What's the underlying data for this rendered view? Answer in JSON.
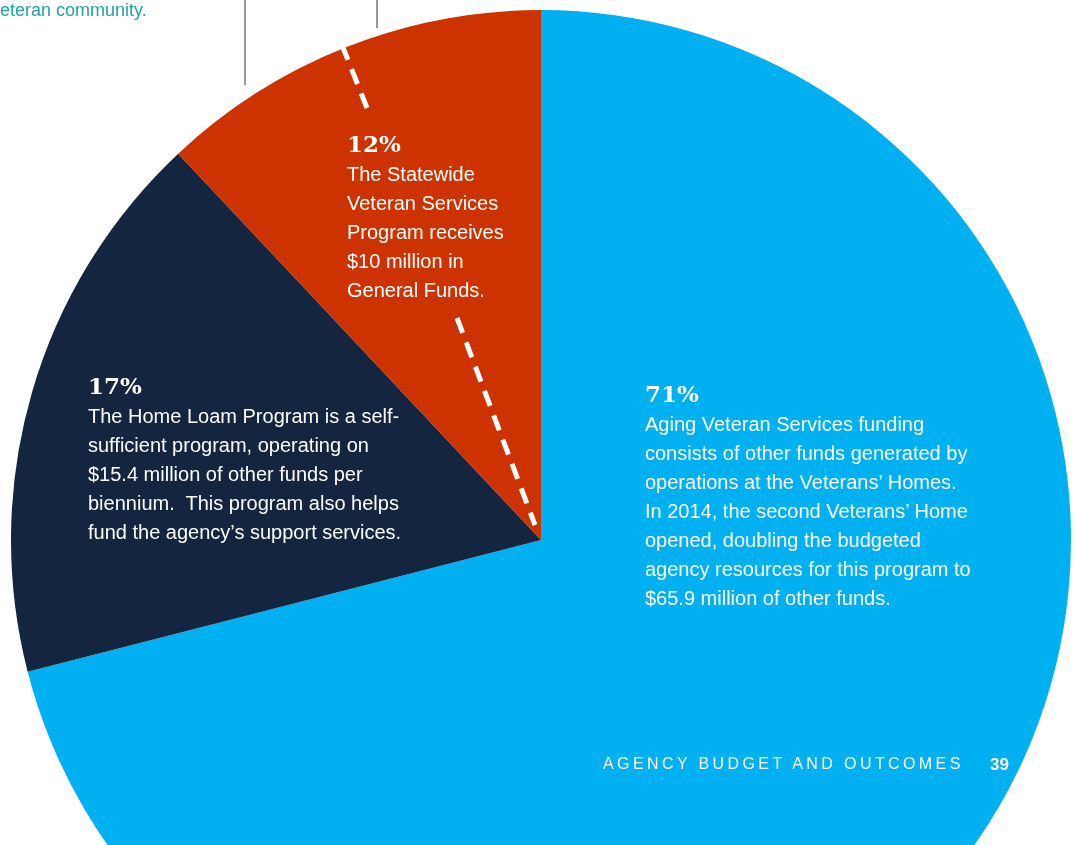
{
  "chart_data": {
    "type": "pie",
    "categories": [
      null,
      null,
      null
    ],
    "values": [
      71,
      17,
      12
    ],
    "colors": [
      "#00b0f0",
      "#14253f",
      "#cc3300"
    ],
    "value_labels": [
      "71%",
      "17%",
      "12%"
    ],
    "annotations": [
      "Aging Veteran Services funding consists of other funds generated by operations at the Veterans’ Homes.  In 2014, the second Veterans’ Home opened, doubling the budgeted agency resources for this program to $65.9 million of other funds.",
      "The Home Loam Program is a self-sufficient program, operating on $15.4 million of other funds per biennium.  This program also helps fund the agency’s support services.",
      "The Statewide Veteran Services Program receives $10 million in General Funds.",
      "eteran community.",
      "AGENCY BUDGET AND OUTCOMES",
      "39"
    ],
    "legend": false
  }
}
